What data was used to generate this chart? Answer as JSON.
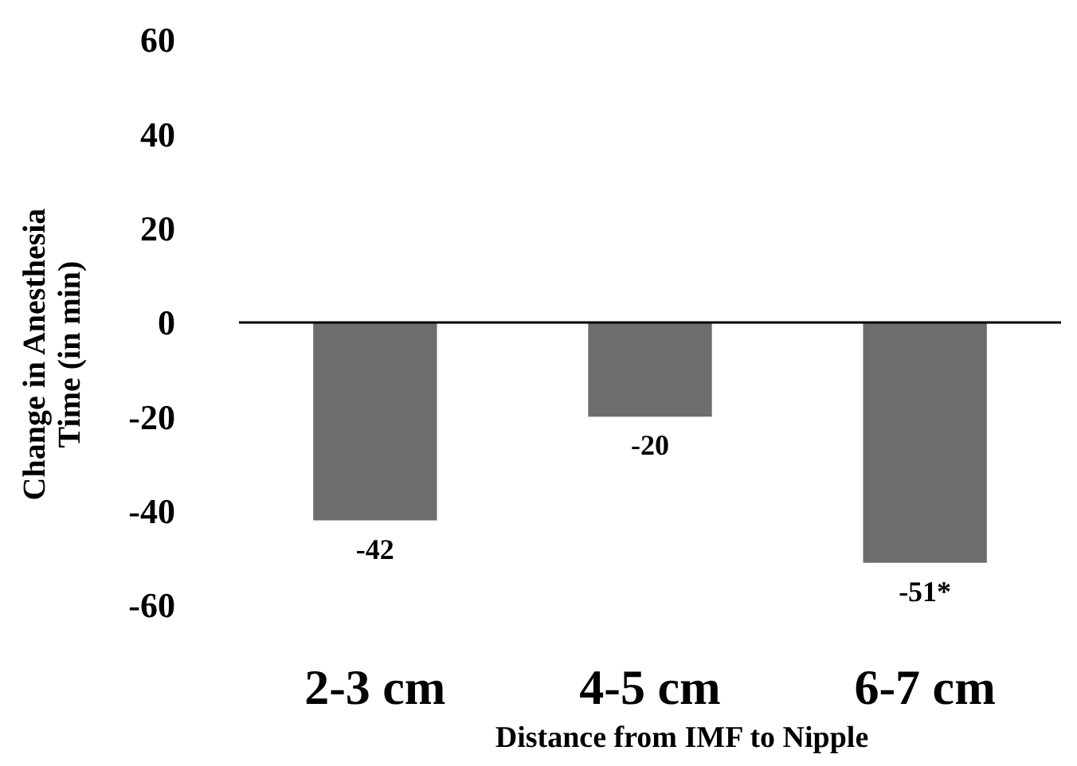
{
  "chart_data": {
    "type": "bar",
    "ylabel": "Change in Anesthesia Time (in min)",
    "xlabel": "Distance from IMF to Nipple",
    "categories": [
      "2-3 cm",
      "4-5 cm",
      "6-7 cm"
    ],
    "values": [
      -42,
      -20,
      -51
    ],
    "value_labels": [
      "-42",
      "-20",
      "-51*"
    ],
    "color": "#6d6d6d",
    "ylim": [
      -60,
      60
    ],
    "yticks": [
      -60,
      -40,
      -20,
      0,
      20,
      40,
      60
    ]
  }
}
